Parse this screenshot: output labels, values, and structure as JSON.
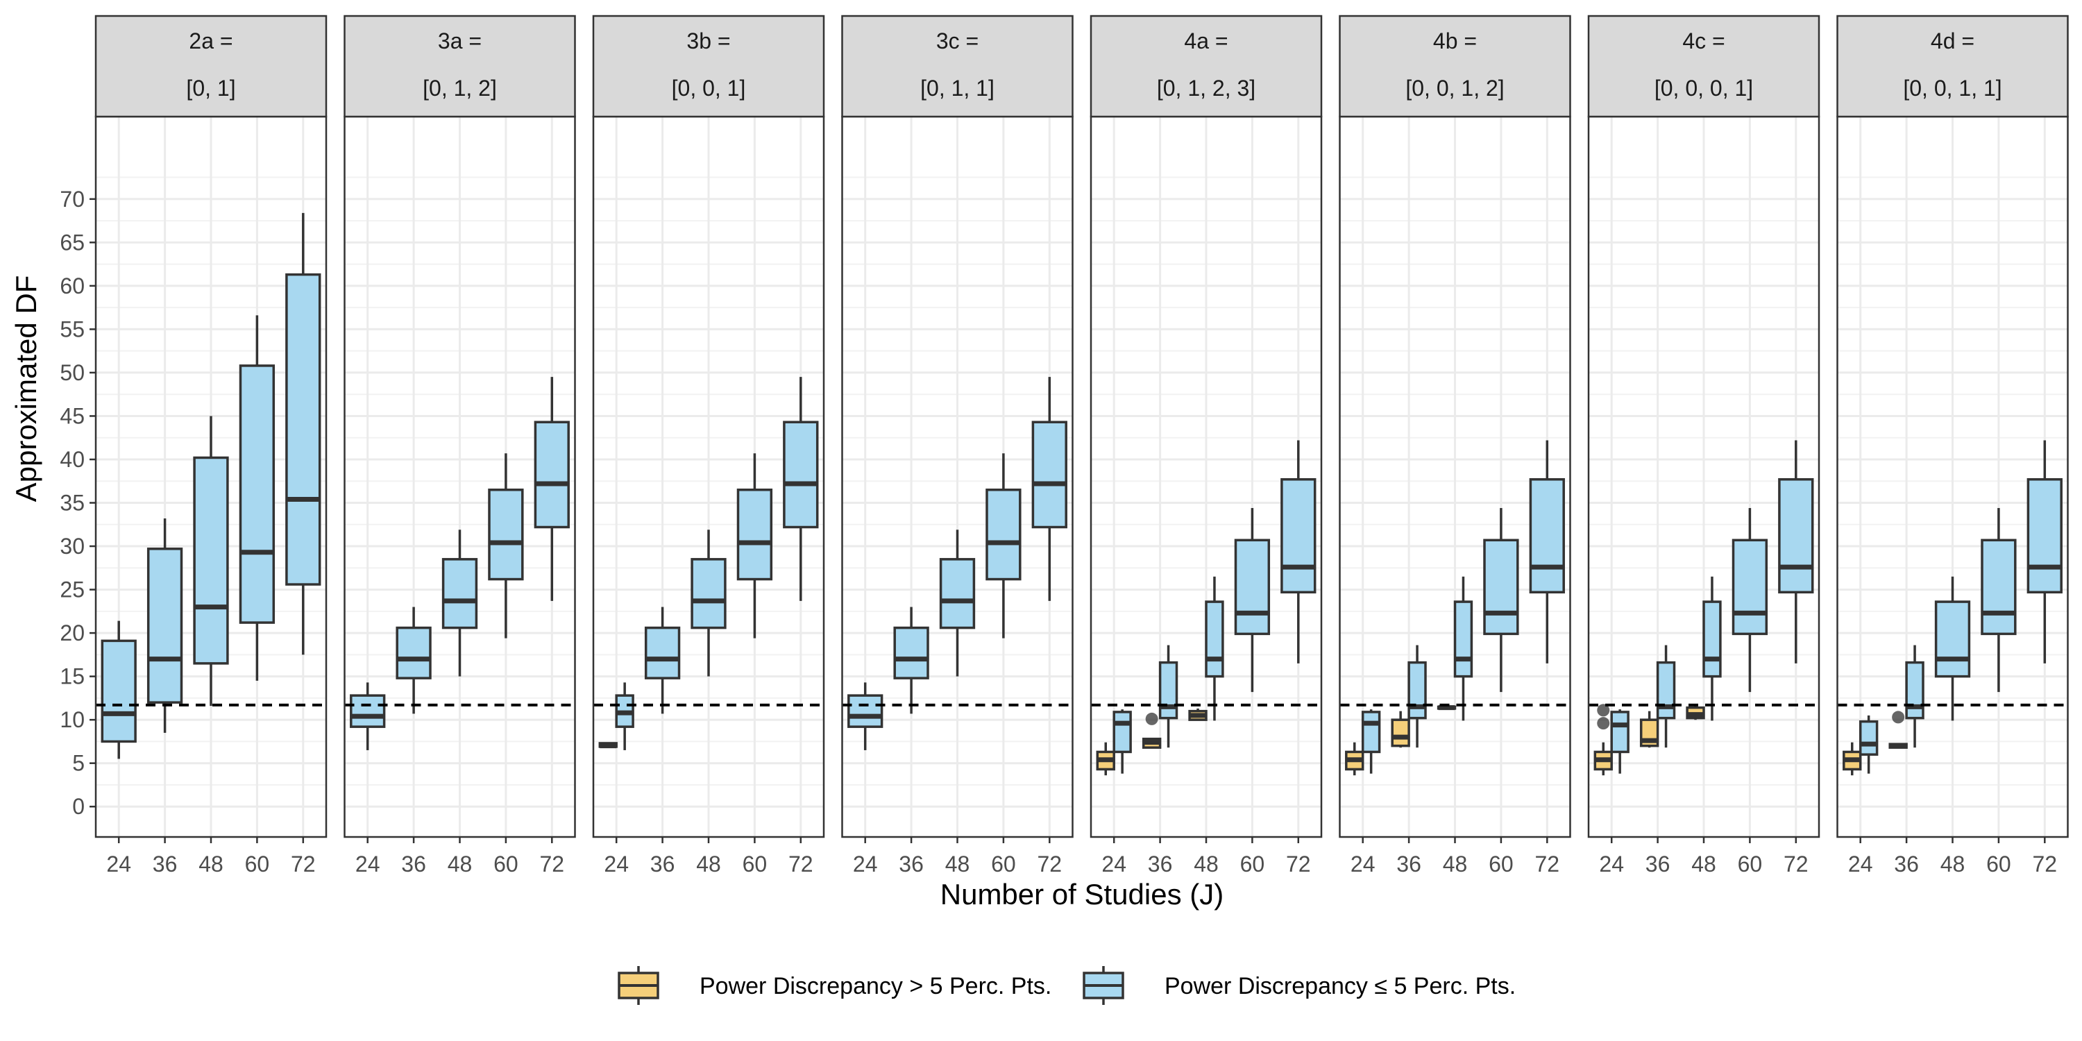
{
  "chart_data": {
    "type": "boxplot",
    "ylabel": "Approximated DF",
    "xlabel": "Number of Studies (J)",
    "ylim": [
      -3.5,
      79.5
    ],
    "yticks": [
      0,
      5,
      10,
      15,
      20,
      25,
      30,
      35,
      40,
      45,
      50,
      55,
      60,
      65,
      70
    ],
    "categories": [
      "24",
      "36",
      "48",
      "60",
      "72"
    ],
    "reference_line": 11.7,
    "legend": {
      "position": "bottom",
      "items": [
        {
          "label": "Power Discrepancy > 5 Perc. Pts.",
          "color": "#F5CF7A"
        },
        {
          "label": "Power Discrepancy ≤ 5 Perc. Pts.",
          "color": "#A8D8F0"
        }
      ]
    },
    "panels": [
      {
        "title_line1": "2a =",
        "title_line2": "[0, 1]",
        "boxes": [
          {
            "x": "24",
            "group": "le5",
            "lw": 5.5,
            "q1": 7.5,
            "med": 10.7,
            "q3": 19.1,
            "uw": 21.4,
            "outliers": []
          },
          {
            "x": "36",
            "group": "le5",
            "lw": 8.5,
            "q1": 12.0,
            "med": 17.0,
            "q3": 29.7,
            "uw": 33.2,
            "outliers": []
          },
          {
            "x": "48",
            "group": "le5",
            "lw": 11.6,
            "q1": 16.5,
            "med": 23.0,
            "q3": 40.2,
            "uw": 45.0,
            "outliers": []
          },
          {
            "x": "60",
            "group": "le5",
            "lw": 14.5,
            "q1": 21.2,
            "med": 29.3,
            "q3": 50.8,
            "uw": 56.6,
            "outliers": []
          },
          {
            "x": "72",
            "group": "le5",
            "lw": 17.5,
            "q1": 25.6,
            "med": 35.4,
            "q3": 61.3,
            "uw": 68.4,
            "outliers": []
          }
        ]
      },
      {
        "title_line1": "3a =",
        "title_line2": "[0, 1, 2]",
        "boxes": [
          {
            "x": "24",
            "group": "le5",
            "lw": 6.5,
            "q1": 9.2,
            "med": 10.4,
            "q3": 12.8,
            "uw": 14.3,
            "outliers": []
          },
          {
            "x": "36",
            "group": "le5",
            "lw": 10.7,
            "q1": 14.8,
            "med": 17.0,
            "q3": 20.6,
            "uw": 23.0,
            "outliers": []
          },
          {
            "x": "48",
            "group": "le5",
            "lw": 15.0,
            "q1": 20.6,
            "med": 23.7,
            "q3": 28.5,
            "uw": 31.9,
            "outliers": []
          },
          {
            "x": "60",
            "group": "le5",
            "lw": 19.4,
            "q1": 26.2,
            "med": 30.4,
            "q3": 36.5,
            "uw": 40.7,
            "outliers": []
          },
          {
            "x": "72",
            "group": "le5",
            "lw": 23.7,
            "q1": 32.2,
            "med": 37.2,
            "q3": 44.3,
            "uw": 49.5,
            "outliers": []
          }
        ]
      },
      {
        "title_line1": "3b =",
        "title_line2": "[0, 0, 1]",
        "boxes": [
          {
            "x": "24",
            "group": "gt5",
            "lw": 6.9,
            "q1": 6.9,
            "med": 7.0,
            "q3": 7.3,
            "uw": 7.4,
            "outliers": []
          },
          {
            "x": "24",
            "group": "le5",
            "lw": 6.5,
            "q1": 9.2,
            "med": 10.8,
            "q3": 12.8,
            "uw": 14.3,
            "outliers": []
          },
          {
            "x": "36",
            "group": "le5",
            "lw": 10.7,
            "q1": 14.8,
            "med": 17.0,
            "q3": 20.6,
            "uw": 23.0,
            "outliers": []
          },
          {
            "x": "48",
            "group": "le5",
            "lw": 15.0,
            "q1": 20.6,
            "med": 23.7,
            "q3": 28.5,
            "uw": 31.9,
            "outliers": []
          },
          {
            "x": "60",
            "group": "le5",
            "lw": 19.4,
            "q1": 26.2,
            "med": 30.4,
            "q3": 36.5,
            "uw": 40.7,
            "outliers": []
          },
          {
            "x": "72",
            "group": "le5",
            "lw": 23.7,
            "q1": 32.2,
            "med": 37.2,
            "q3": 44.3,
            "uw": 49.5,
            "outliers": []
          }
        ]
      },
      {
        "title_line1": "3c =",
        "title_line2": "[0, 1, 1]",
        "boxes": [
          {
            "x": "24",
            "group": "le5",
            "lw": 6.5,
            "q1": 9.2,
            "med": 10.4,
            "q3": 12.8,
            "uw": 14.3,
            "outliers": []
          },
          {
            "x": "36",
            "group": "le5",
            "lw": 10.7,
            "q1": 14.8,
            "med": 17.0,
            "q3": 20.6,
            "uw": 23.0,
            "outliers": []
          },
          {
            "x": "48",
            "group": "le5",
            "lw": 15.0,
            "q1": 20.6,
            "med": 23.7,
            "q3": 28.5,
            "uw": 31.9,
            "outliers": []
          },
          {
            "x": "60",
            "group": "le5",
            "lw": 19.4,
            "q1": 26.2,
            "med": 30.4,
            "q3": 36.5,
            "uw": 40.7,
            "outliers": []
          },
          {
            "x": "72",
            "group": "le5",
            "lw": 23.7,
            "q1": 32.2,
            "med": 37.2,
            "q3": 44.3,
            "uw": 49.5,
            "outliers": []
          }
        ]
      },
      {
        "title_line1": "4a =",
        "title_line2": "[0, 1, 2, 3]",
        "boxes": [
          {
            "x": "24",
            "group": "gt5",
            "lw": 3.6,
            "q1": 4.3,
            "med": 5.4,
            "q3": 6.3,
            "uw": 7.4,
            "outliers": []
          },
          {
            "x": "24",
            "group": "le5",
            "lw": 3.8,
            "q1": 6.3,
            "med": 9.6,
            "q3": 10.9,
            "uw": 11.2,
            "outliers": []
          },
          {
            "x": "36",
            "group": "gt5",
            "lw": 6.8,
            "q1": 6.8,
            "med": 7.4,
            "q3": 7.8,
            "uw": 7.8,
            "outliers": [
              10.1
            ]
          },
          {
            "x": "36",
            "group": "le5",
            "lw": 6.8,
            "q1": 10.2,
            "med": 11.5,
            "q3": 16.6,
            "uw": 18.6,
            "outliers": []
          },
          {
            "x": "48",
            "group": "gt5",
            "lw": 10.0,
            "q1": 10.0,
            "med": 10.5,
            "q3": 11.0,
            "uw": 11.3,
            "outliers": []
          },
          {
            "x": "48",
            "group": "le5",
            "lw": 9.9,
            "q1": 15.0,
            "med": 17.0,
            "q3": 23.6,
            "uw": 26.5,
            "outliers": []
          },
          {
            "x": "60",
            "group": "le5",
            "lw": 13.2,
            "q1": 19.9,
            "med": 22.3,
            "q3": 30.7,
            "uw": 34.4,
            "outliers": []
          },
          {
            "x": "72",
            "group": "le5",
            "lw": 16.5,
            "q1": 24.7,
            "med": 27.6,
            "q3": 37.7,
            "uw": 42.2,
            "outliers": []
          }
        ]
      },
      {
        "title_line1": "4b =",
        "title_line2": "[0, 0, 1, 2]",
        "boxes": [
          {
            "x": "24",
            "group": "gt5",
            "lw": 3.6,
            "q1": 4.3,
            "med": 5.4,
            "q3": 6.3,
            "uw": 7.4,
            "outliers": []
          },
          {
            "x": "24",
            "group": "le5",
            "lw": 3.8,
            "q1": 6.3,
            "med": 9.6,
            "q3": 10.9,
            "uw": 11.2,
            "outliers": []
          },
          {
            "x": "36",
            "group": "gt5",
            "lw": 6.8,
            "q1": 7.0,
            "med": 8.0,
            "q3": 10.0,
            "uw": 11.0,
            "outliers": []
          },
          {
            "x": "36",
            "group": "le5",
            "lw": 6.8,
            "q1": 10.2,
            "med": 11.5,
            "q3": 16.6,
            "uw": 18.6,
            "outliers": []
          },
          {
            "x": "48",
            "group": "gt5",
            "lw": 11.3,
            "q1": 11.3,
            "med": 11.4,
            "q3": 11.5,
            "uw": 11.6,
            "outliers": []
          },
          {
            "x": "48",
            "group": "le5",
            "lw": 9.9,
            "q1": 15.0,
            "med": 17.0,
            "q3": 23.6,
            "uw": 26.5,
            "outliers": []
          },
          {
            "x": "60",
            "group": "le5",
            "lw": 13.2,
            "q1": 19.9,
            "med": 22.3,
            "q3": 30.7,
            "uw": 34.4,
            "outliers": []
          },
          {
            "x": "72",
            "group": "le5",
            "lw": 16.5,
            "q1": 24.7,
            "med": 27.6,
            "q3": 37.7,
            "uw": 42.2,
            "outliers": []
          }
        ]
      },
      {
        "title_line1": "4c =",
        "title_line2": "[0, 0, 0, 1]",
        "boxes": [
          {
            "x": "24",
            "group": "gt5",
            "lw": 3.6,
            "q1": 4.3,
            "med": 5.4,
            "q3": 6.3,
            "uw": 7.4,
            "outliers": [
              9.6,
              11.1
            ]
          },
          {
            "x": "24",
            "group": "le5",
            "lw": 3.8,
            "q1": 6.3,
            "med": 9.4,
            "q3": 10.9,
            "uw": 11.2,
            "outliers": []
          },
          {
            "x": "36",
            "group": "gt5",
            "lw": 6.8,
            "q1": 7.0,
            "med": 7.6,
            "q3": 10.0,
            "uw": 11.0,
            "outliers": []
          },
          {
            "x": "36",
            "group": "le5",
            "lw": 6.8,
            "q1": 10.2,
            "med": 11.5,
            "q3": 16.6,
            "uw": 18.6,
            "outliers": []
          },
          {
            "x": "48",
            "group": "gt5",
            "lw": 10.0,
            "q1": 10.2,
            "med": 10.6,
            "q3": 11.4,
            "uw": 11.6,
            "outliers": []
          },
          {
            "x": "48",
            "group": "le5",
            "lw": 9.9,
            "q1": 15.0,
            "med": 17.0,
            "q3": 23.6,
            "uw": 26.5,
            "outliers": []
          },
          {
            "x": "60",
            "group": "le5",
            "lw": 13.2,
            "q1": 19.9,
            "med": 22.3,
            "q3": 30.7,
            "uw": 34.4,
            "outliers": []
          },
          {
            "x": "72",
            "group": "le5",
            "lw": 16.5,
            "q1": 24.7,
            "med": 27.6,
            "q3": 37.7,
            "uw": 42.2,
            "outliers": []
          }
        ]
      },
      {
        "title_line1": "4d =",
        "title_line2": "[0, 0, 1, 1]",
        "boxes": [
          {
            "x": "24",
            "group": "gt5",
            "lw": 3.6,
            "q1": 4.3,
            "med": 5.4,
            "q3": 6.3,
            "uw": 7.4,
            "outliers": []
          },
          {
            "x": "24",
            "group": "le5",
            "lw": 3.8,
            "q1": 6.0,
            "med": 7.2,
            "q3": 9.8,
            "uw": 10.5,
            "outliers": []
          },
          {
            "x": "36",
            "group": "gt5",
            "lw": 6.8,
            "q1": 6.8,
            "med": 7.0,
            "q3": 7.2,
            "uw": 7.3,
            "outliers": [
              10.3
            ]
          },
          {
            "x": "36",
            "group": "le5",
            "lw": 6.8,
            "q1": 10.2,
            "med": 11.5,
            "q3": 16.6,
            "uw": 18.6,
            "outliers": []
          },
          {
            "x": "48",
            "group": "le5",
            "lw": 9.9,
            "q1": 15.0,
            "med": 17.0,
            "q3": 23.6,
            "uw": 26.5,
            "outliers": []
          },
          {
            "x": "60",
            "group": "le5",
            "lw": 13.2,
            "q1": 19.9,
            "med": 22.3,
            "q3": 30.7,
            "uw": 34.4,
            "outliers": []
          },
          {
            "x": "72",
            "group": "le5",
            "lw": 16.5,
            "q1": 24.7,
            "med": 27.6,
            "q3": 37.7,
            "uw": 42.2,
            "outliers": []
          }
        ]
      }
    ]
  }
}
